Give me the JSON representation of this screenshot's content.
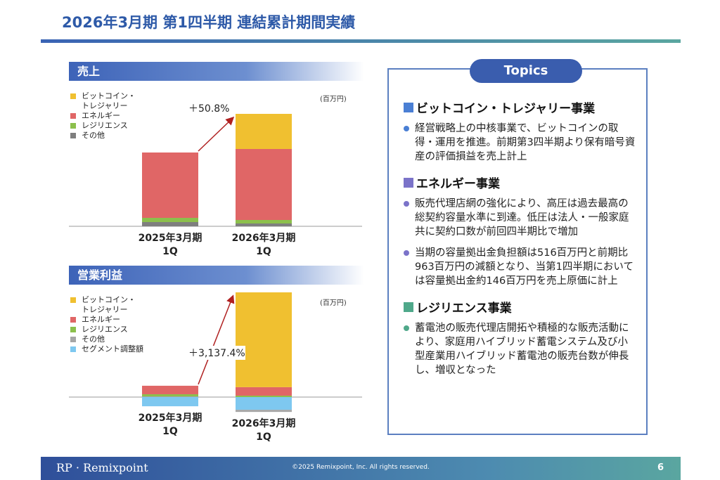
{
  "header": {
    "title": "2026年3月期 第1四半期 連結累計期間実績"
  },
  "chart_data": [
    {
      "type": "bar",
      "stacked": true,
      "title": "売上",
      "unit_label": "(百万円)",
      "annotation": "＋50.8%",
      "categories": [
        "2025年3月期\n1Q",
        "2026年3月期\n1Q"
      ],
      "series": [
        {
          "name": "ビットコイン・\nトレジャリー",
          "color": "#f0c030",
          "values": [
            0,
            50
          ]
        },
        {
          "name": "エネルギー",
          "color": "#e06666",
          "values": [
            93,
            101
          ]
        },
        {
          "name": "レジリエンス",
          "color": "#8cc04c",
          "values": [
            6,
            5
          ]
        },
        {
          "name": "その他",
          "color": "#7f7f7f",
          "values": [
            6,
            4
          ]
        }
      ]
    },
    {
      "type": "bar",
      "stacked": true,
      "title": "営業利益",
      "unit_label": "(百万円)",
      "annotation": "＋3,137.4%",
      "categories": [
        "2025年3月期\n1Q",
        "2026年3月期\n1Q"
      ],
      "series": [
        {
          "name": "ビットコイン・\nトレジャリー",
          "color": "#f0c030",
          "values": [
            0,
            134
          ]
        },
        {
          "name": "エネルギー",
          "color": "#e06666",
          "values": [
            12,
            12
          ]
        },
        {
          "name": "レジリエンス",
          "color": "#8cc04c",
          "values": [
            3,
            2
          ]
        },
        {
          "name": "その他",
          "color": "#a6a6a6",
          "values": [
            1,
            -3
          ]
        },
        {
          "name": "セグメント調整額",
          "color": "#7ec8f0",
          "values": [
            -13,
            -18
          ]
        }
      ]
    }
  ],
  "topics": {
    "title": "Topics",
    "sections": [
      {
        "heading": "ビットコイン・トレジャリー事業",
        "color": "#4a7fd4",
        "bullets": [
          "経営戦略上の中核事業で、ビットコインの取得・運用を推進。前期第3四半期より保有暗号資産の評価損益を売上計上"
        ]
      },
      {
        "heading": "エネルギー事業",
        "color": "#7b73c9",
        "bullets": [
          "販売代理店網の強化により、高圧は過去最高の総契約容量水準に到達。低圧は法人・一般家庭共に契約口数が前回四半期比で増加",
          "当期の容量拠出金負担額は516百万円と前期比963百万円の減額となり、当第1四半期においては容量拠出金約146百万円を売上原価に計上"
        ]
      },
      {
        "heading": "レジリエンス事業",
        "color": "#4fa88a",
        "bullets": [
          "蓄電池の販売代理店開拓や積極的な販売活動により、家庭用ハイブリッド蓄電システム及び小型産業用ハイブリッド蓄電池の販売台数が伸長し、増収となった"
        ]
      }
    ]
  },
  "footer": {
    "logo_mark": "RP",
    "logo_text": "Remixpoint",
    "copyright": "©2025 Remixpoint, Inc. All rights reserved.",
    "page": "6"
  }
}
